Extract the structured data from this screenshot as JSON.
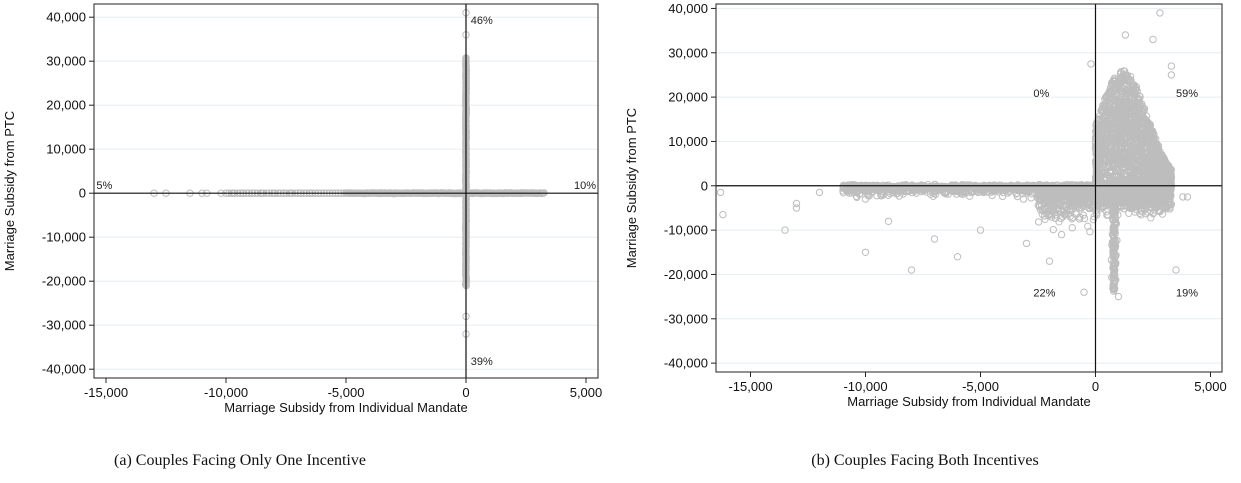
{
  "chart_data": [
    {
      "type": "scatter",
      "caption": "(a) Couples Facing Only One Incentive",
      "xlabel": "Marriage Subsidy from Individual Mandate",
      "ylabel": "Marriage Subsidy from PTC",
      "xlim": [
        -15500,
        5500
      ],
      "ylim": [
        -42000,
        43000
      ],
      "xticks": [
        -15000,
        -10000,
        -5000,
        0,
        5000
      ],
      "xtick_labels": [
        "-15,000",
        "-10,000",
        "-5,000",
        "0",
        "5,000"
      ],
      "yticks": [
        40000,
        30000,
        20000,
        10000,
        0,
        -10000,
        -20000,
        -30000,
        -40000
      ],
      "ytick_labels": [
        "40,000",
        "30,000",
        "20,000",
        "10,000",
        "0",
        "-10,000",
        "-20,000",
        "-30,000",
        "-40,000"
      ],
      "grid": "horizontal",
      "marker_color": "#bdbdbd",
      "reference_lines": {
        "x": 0,
        "y": 0
      },
      "annotations": [
        {
          "text": "46%",
          "x": 200,
          "y": 38500
        },
        {
          "text": "39%",
          "x": 200,
          "y": -39000
        },
        {
          "text": "5%",
          "x": -15400,
          "y": 1000
        },
        {
          "text": "10%",
          "x": 4500,
          "y": 1000
        }
      ],
      "points": {
        "horizontal_band": {
          "y": 0,
          "x_range": [
            -13000,
            3300
          ]
        },
        "vertical_band": {
          "x": 0,
          "y_range": [
            -32500,
            43000
          ]
        },
        "outliers": [
          [
            -13000,
            0
          ],
          [
            -12500,
            0
          ],
          [
            -11500,
            0
          ],
          [
            -11000,
            0
          ],
          [
            -10800,
            0
          ],
          [
            -10200,
            0
          ],
          [
            -9700,
            0
          ],
          [
            -9300,
            0
          ],
          [
            -8900,
            0
          ],
          [
            -8500,
            0
          ],
          [
            -8000,
            0
          ],
          [
            -7600,
            0
          ],
          [
            -7300,
            0
          ],
          [
            -6900,
            0
          ],
          [
            -6500,
            0
          ],
          [
            0,
            -32000
          ],
          [
            0,
            -28000
          ],
          [
            0,
            36000
          ],
          [
            0,
            41000
          ]
        ]
      }
    },
    {
      "type": "scatter",
      "caption": "(b) Couples Facing Both Incentives",
      "xlabel": "Marriage Subsidy from Individual Mandate",
      "ylabel": "Marriage Subsidy from PTC",
      "xlim": [
        -16500,
        5500
      ],
      "ylim": [
        -42000,
        41000
      ],
      "xticks": [
        -15000,
        -10000,
        -5000,
        0,
        5000
      ],
      "xtick_labels": [
        "-15,000",
        "-10,000",
        "-5,000",
        "0",
        "5,000"
      ],
      "yticks": [
        40000,
        30000,
        20000,
        10000,
        0,
        -10000,
        -20000,
        -30000,
        -40000
      ],
      "ytick_labels": [
        "40,000",
        "30,000",
        "20,000",
        "10,000",
        "0",
        "-10,000",
        "-20,000",
        "-30,000",
        "-40,000"
      ],
      "grid": "horizontal",
      "marker_color": "#bdbdbd",
      "reference_lines": {
        "x": 0,
        "y": 0
      },
      "annotations": [
        {
          "text": "0%",
          "x": -2700,
          "y": 20000
        },
        {
          "text": "59%",
          "x": 3500,
          "y": 20000
        },
        {
          "text": "22%",
          "x": -2700,
          "y": -25000
        },
        {
          "text": "19%",
          "x": 3500,
          "y": -25000
        }
      ],
      "points": {
        "outliers": [
          [
            -16300,
            -1500
          ],
          [
            -16200,
            -6500
          ],
          [
            -13500,
            -10000
          ],
          [
            -13000,
            -4000
          ],
          [
            -13000,
            -5000
          ],
          [
            -12000,
            -1500
          ],
          [
            -10000,
            -3000
          ],
          [
            -10000,
            -15000
          ],
          [
            -9000,
            -8000
          ],
          [
            -8000,
            -19000
          ],
          [
            -7000,
            -12000
          ],
          [
            -6000,
            -16000
          ],
          [
            -5000,
            -10000
          ],
          [
            -3000,
            -13000
          ],
          [
            -2000,
            -17000
          ],
          [
            -500,
            -24000
          ],
          [
            2800,
            39000
          ],
          [
            3300,
            27000
          ],
          [
            3300,
            25000
          ],
          [
            3500,
            -19000
          ],
          [
            3800,
            -2500
          ],
          [
            4000,
            -2500
          ],
          [
            2500,
            33000
          ],
          [
            1300,
            34000
          ],
          [
            -200,
            27500
          ],
          [
            1000,
            -25000
          ]
        ]
      }
    }
  ]
}
